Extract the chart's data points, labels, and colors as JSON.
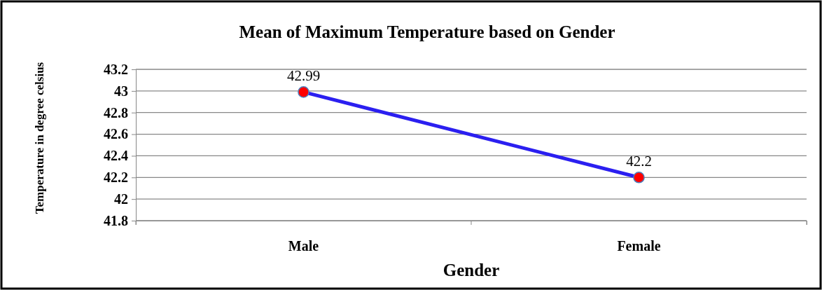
{
  "chart_data": {
    "type": "line",
    "title": "Mean of Maximum Temperature based on Gender",
    "xlabel": "Gender",
    "ylabel": "Temperature in degree celsius",
    "categories": [
      "Male",
      "Female"
    ],
    "series": [
      {
        "color": "#2b1ff0",
        "colors": [
          "#ff0000",
          "#ff0000"
        ],
        "values": [
          42.99,
          42.2
        ]
      }
    ],
    "ylim": [
      41.8,
      43.2
    ],
    "yticks": [
      41.8,
      42,
      42.2,
      42.4,
      42.6,
      42.8,
      43,
      43.2
    ],
    "grid": "y",
    "marker": "circle",
    "line_style": "solid",
    "data_labels": true
  }
}
